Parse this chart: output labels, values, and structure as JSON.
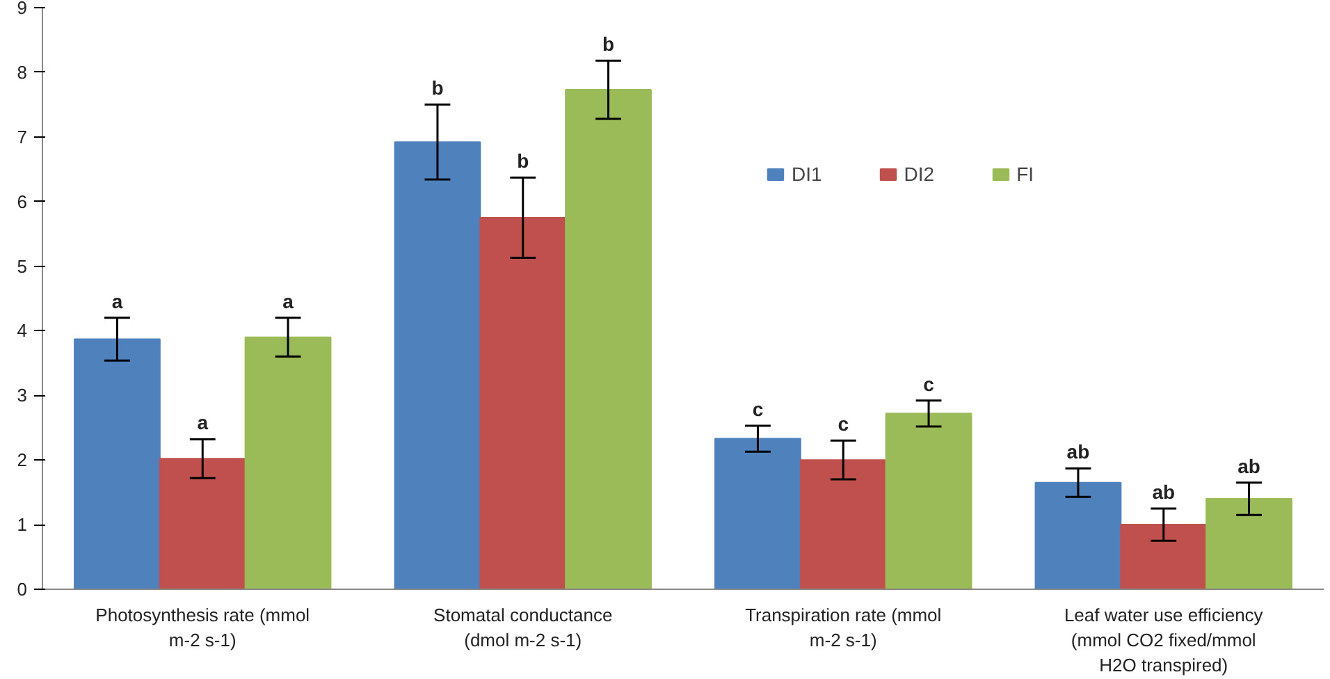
{
  "chart_data": {
    "type": "bar",
    "categories": [
      "Photosynthesis rate (mmol\nm-2 s-1)",
      "Stomatal conductance\n(dmol m-2 s-1)",
      "Transpiration rate (mmol\nm-2 s-1)",
      "Leaf water use efficiency\n(mmol CO2 fixed/mmol\nH2O transpired)"
    ],
    "series": [
      {
        "name": "DI1",
        "color": "#4f81bd",
        "values": [
          3.87,
          6.92,
          2.33,
          1.65
        ],
        "errors": [
          0.33,
          0.58,
          0.2,
          0.22
        ],
        "value_labels": [
          "a",
          "b",
          "c",
          "ab"
        ]
      },
      {
        "name": "DI2",
        "color": "#c0504d",
        "values": [
          2.02,
          5.75,
          2.0,
          1.0
        ],
        "errors": [
          0.3,
          0.62,
          0.3,
          0.25
        ],
        "value_labels": [
          "a",
          "b",
          "c",
          "ab"
        ]
      },
      {
        "name": "FI",
        "color": "#9bbb59",
        "values": [
          3.9,
          7.73,
          2.72,
          1.4
        ],
        "errors": [
          0.3,
          0.45,
          0.2,
          0.25
        ],
        "value_labels": [
          "a",
          "b",
          "c",
          "ab"
        ]
      }
    ],
    "ylim": [
      0,
      9
    ],
    "yticks": [
      0,
      1,
      2,
      3,
      4,
      5,
      6,
      7,
      8,
      9
    ],
    "grid": false,
    "legend": "top right"
  }
}
